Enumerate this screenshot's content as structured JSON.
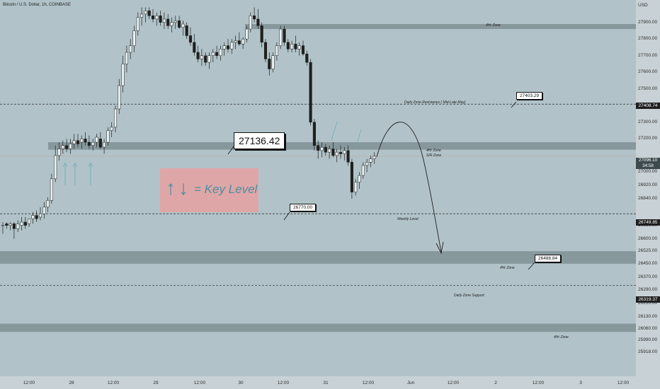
{
  "title": "Bitcoin / U.S. Dollar, 1h, COINBASE",
  "currency": "USD",
  "price_ticks": [
    "27900.00",
    "27800.00",
    "27700.00",
    "27600.00",
    "27500.00",
    "27300.00",
    "27200.00",
    "27000.00",
    "26920.00",
    "26840.00",
    "26680.00",
    "26600.00",
    "26525.00",
    "26450.00",
    "26370.00",
    "26290.00",
    "26210.00",
    "26130.00",
    "26060.00",
    "25990.00",
    "25918.00"
  ],
  "time_ticks": [
    "12:00",
    "28",
    "12:00",
    "29",
    "12:00",
    "30",
    "12:00",
    "31",
    "12:00",
    "Jun",
    "12:00",
    "2",
    "12:00",
    "3",
    "12:00"
  ],
  "price_boxes": {
    "resistance": "27408.74",
    "current": "27096.10",
    "countdown": "34:58",
    "weekly": "26749.85",
    "support": "26319.37"
  },
  "callouts": {
    "big": "27136.42",
    "resistance": "27403.29",
    "weekly": "26770.00",
    "zone": "26488.84"
  },
  "zone_labels": {
    "z4h_top": "4Hr Zone",
    "z4h_mid": "4Hr Zone",
    "sr_zone": "S/R Zone",
    "resistance": "Daily Zone Resistance ( Mid-Late May)",
    "weekly": "Weekly Level",
    "z4h_low": "4Hr Zone",
    "support": "Daily Zone Support",
    "z4h_bottom": "4Hr Zone"
  },
  "legend_text": "= Key Level",
  "colors": {
    "background": "#b1c3c9",
    "up_candle": "#e9f1f3",
    "down_candle": "#1f1f1f",
    "zone": "#7d8d92",
    "key_box": "#e9a0a0",
    "key_text": "#4a8fa0"
  },
  "chart_data": {
    "type": "candlestick",
    "symbol": "Bitcoin / U.S. Dollar",
    "interval": "1h",
    "exchange": "COINBASE",
    "price_scale": [
      25918,
      27950
    ],
    "zones": [
      {
        "label": "4Hr Zone",
        "from": 27860,
        "to": 27890
      },
      {
        "label": "4Hr Zone / S/R Zone",
        "from": 27135,
        "to": 27180
      },
      {
        "label": "4Hr Zone",
        "from": 26450,
        "to": 26525
      },
      {
        "label": "4Hr Zone",
        "from": 26040,
        "to": 26090
      }
    ],
    "levels": [
      {
        "label": "Daily Zone Resistance ( Mid-Late May)",
        "price": 27408.74
      },
      {
        "label": "Weekly Level",
        "price": 26749.85
      },
      {
        "label": "Daily Zone Support",
        "price": 26319.37
      }
    ],
    "last_price": 27096.1,
    "candles": [
      [
        26680,
        26700,
        26630,
        26680
      ],
      [
        26690,
        26700,
        26660,
        26680
      ],
      [
        26680,
        26700,
        26650,
        26690
      ],
      [
        26690,
        26700,
        26600,
        26660
      ],
      [
        26660,
        26710,
        26640,
        26690
      ],
      [
        26680,
        26730,
        26650,
        26700
      ],
      [
        26700,
        26730,
        26660,
        26680
      ],
      [
        26690,
        26720,
        26670,
        26720
      ],
      [
        26720,
        26760,
        26690,
        26740
      ],
      [
        26740,
        26770,
        26700,
        26720
      ],
      [
        26730,
        26790,
        26710,
        26750
      ],
      [
        26750,
        26820,
        26720,
        26790
      ],
      [
        26790,
        26850,
        26760,
        26830
      ],
      [
        26830,
        26990,
        26810,
        26960
      ],
      [
        26960,
        27160,
        26940,
        27100
      ],
      [
        27100,
        27180,
        27070,
        27140
      ],
      [
        27140,
        27190,
        27110,
        27160
      ],
      [
        27160,
        27200,
        27120,
        27140
      ],
      [
        27140,
        27200,
        27110,
        27170
      ],
      [
        27170,
        27230,
        27140,
        27190
      ],
      [
        27190,
        27230,
        27150,
        27170
      ],
      [
        27180,
        27220,
        27140,
        27200
      ],
      [
        27200,
        27240,
        27160,
        27180
      ],
      [
        27180,
        27220,
        27140,
        27160
      ],
      [
        27160,
        27200,
        27130,
        27180
      ],
      [
        27180,
        27230,
        27150,
        27210
      ],
      [
        27200,
        27240,
        27140,
        27150
      ],
      [
        27150,
        27200,
        27110,
        27180
      ],
      [
        27180,
        27270,
        27160,
        27250
      ],
      [
        27250,
        27300,
        27210,
        27270
      ],
      [
        27270,
        27400,
        27240,
        27380
      ],
      [
        27380,
        27560,
        27350,
        27520
      ],
      [
        27520,
        27700,
        27480,
        27650
      ],
      [
        27650,
        27760,
        27600,
        27720
      ],
      [
        27720,
        27800,
        27680,
        27760
      ],
      [
        27760,
        27880,
        27720,
        27850
      ],
      [
        27850,
        27960,
        27820,
        27930
      ],
      [
        27930,
        27990,
        27880,
        27950
      ],
      [
        27950,
        27990,
        27900,
        27970
      ],
      [
        27970,
        27990,
        27920,
        27940
      ],
      [
        27940,
        27980,
        27900,
        27920
      ],
      [
        27920,
        27960,
        27880,
        27940
      ],
      [
        27940,
        27970,
        27880,
        27900
      ],
      [
        27900,
        27960,
        27860,
        27920
      ],
      [
        27920,
        27950,
        27860,
        27880
      ],
      [
        27880,
        27930,
        27840,
        27900
      ],
      [
        27900,
        27940,
        27860,
        27910
      ],
      [
        27910,
        27940,
        27860,
        27870
      ],
      [
        27870,
        27910,
        27820,
        27890
      ],
      [
        27880,
        27900,
        27800,
        27820
      ],
      [
        27820,
        27870,
        27760,
        27780
      ],
      [
        27780,
        27830,
        27700,
        27720
      ],
      [
        27720,
        27760,
        27660,
        27680
      ],
      [
        27680,
        27740,
        27640,
        27700
      ],
      [
        27700,
        27720,
        27640,
        27660
      ],
      [
        27660,
        27720,
        27620,
        27700
      ],
      [
        27700,
        27740,
        27660,
        27720
      ],
      [
        27720,
        27760,
        27680,
        27700
      ],
      [
        27700,
        27760,
        27670,
        27740
      ],
      [
        27740,
        27780,
        27700,
        27760
      ],
      [
        27760,
        27800,
        27720,
        27740
      ],
      [
        27740,
        27800,
        27710,
        27780
      ],
      [
        27780,
        27820,
        27740,
        27790
      ],
      [
        27790,
        27840,
        27760,
        27770
      ],
      [
        27770,
        27810,
        27740,
        27800
      ],
      [
        27800,
        27880,
        27780,
        27860
      ],
      [
        27860,
        27960,
        27840,
        27940
      ],
      [
        27940,
        27990,
        27900,
        27920
      ],
      [
        27920,
        27980,
        27860,
        27880
      ],
      [
        27880,
        27900,
        27750,
        27780
      ],
      [
        27780,
        27800,
        27660,
        27680
      ],
      [
        27680,
        27720,
        27580,
        27620
      ],
      [
        27620,
        27720,
        27600,
        27700
      ],
      [
        27700,
        27780,
        27670,
        27760
      ],
      [
        27760,
        27880,
        27740,
        27860
      ],
      [
        27860,
        27880,
        27760,
        27780
      ],
      [
        27780,
        27800,
        27720,
        27740
      ],
      [
        27740,
        27790,
        27720,
        27770
      ],
      [
        27770,
        27820,
        27720,
        27740
      ],
      [
        27740,
        27780,
        27700,
        27760
      ],
      [
        27760,
        27790,
        27700,
        27710
      ],
      [
        27710,
        27730,
        27640,
        27660
      ],
      [
        27660,
        27680,
        27280,
        27300
      ],
      [
        27300,
        27320,
        27130,
        27160
      ],
      [
        27160,
        27190,
        27080,
        27130
      ],
      [
        27130,
        27180,
        27090,
        27150
      ],
      [
        27150,
        27170,
        27100,
        27120
      ],
      [
        27120,
        27160,
        27080,
        27140
      ],
      [
        27140,
        27180,
        27090,
        27100
      ],
      [
        27100,
        27140,
        27060,
        27120
      ],
      [
        27120,
        27160,
        27080,
        27110
      ],
      [
        27110,
        27150,
        27070,
        27130
      ],
      [
        27130,
        27160,
        27040,
        27060
      ],
      [
        27060,
        27080,
        26840,
        26880
      ],
      [
        26880,
        26960,
        26860,
        26940
      ],
      [
        26940,
        27000,
        26900,
        26980
      ],
      [
        26980,
        27060,
        26960,
        27040
      ],
      [
        27040,
        27080,
        27000,
        27060
      ],
      [
        27060,
        27100,
        27030,
        27080
      ],
      [
        27080,
        27120,
        27050,
        27096
      ]
    ]
  }
}
